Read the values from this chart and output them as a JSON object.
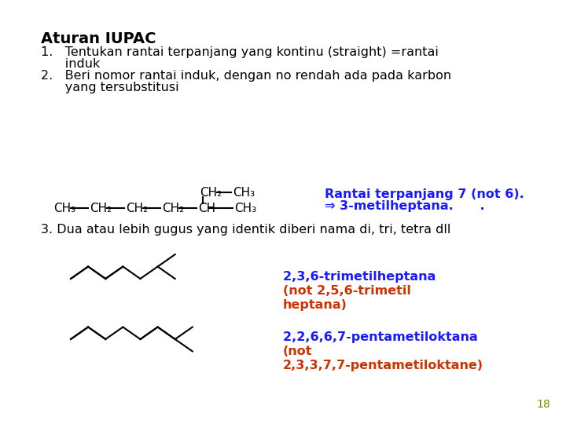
{
  "bg_color": "#ffffff",
  "title": "Aturan IUPAC",
  "title_color": "#000000",
  "title_fontsize": 14,
  "text_color": "#000000",
  "blue_color": "#1a1aff",
  "red_color": "#cc3300",
  "gray_color": "#888800",
  "text_fontsize": 11.5,
  "chem_fontsize": 11,
  "page_num": "18",
  "rule1_line1": "1.   Tentukan rantai terpanjang yang kontinu (straight) =rantai",
  "rule1_line2": "      induk",
  "rule2_line1": "2.   Beri nomor rantai induk, dengan no rendah ada pada karbon",
  "rule2_line2": "      yang tersubstitusi",
  "rule3": "3. Dua atau lebih gugus yang identik diberi nama di, tri, tetra dll",
  "annot1_line1": "Rantai terpanjang 7 (not 6).",
  "annot1_line2": "⇒ 3-metilheptana.      .",
  "annot2_blue": "2,3,6-trimetilheptana ",
  "annot2_red": "(not 2,5,6-trimetil\nheptana)",
  "annot3_blue": "2,2,6,6,7-pentametiloktana ",
  "annot3_red": "(not\n2,3,3,7,7-pentametiloktane)"
}
